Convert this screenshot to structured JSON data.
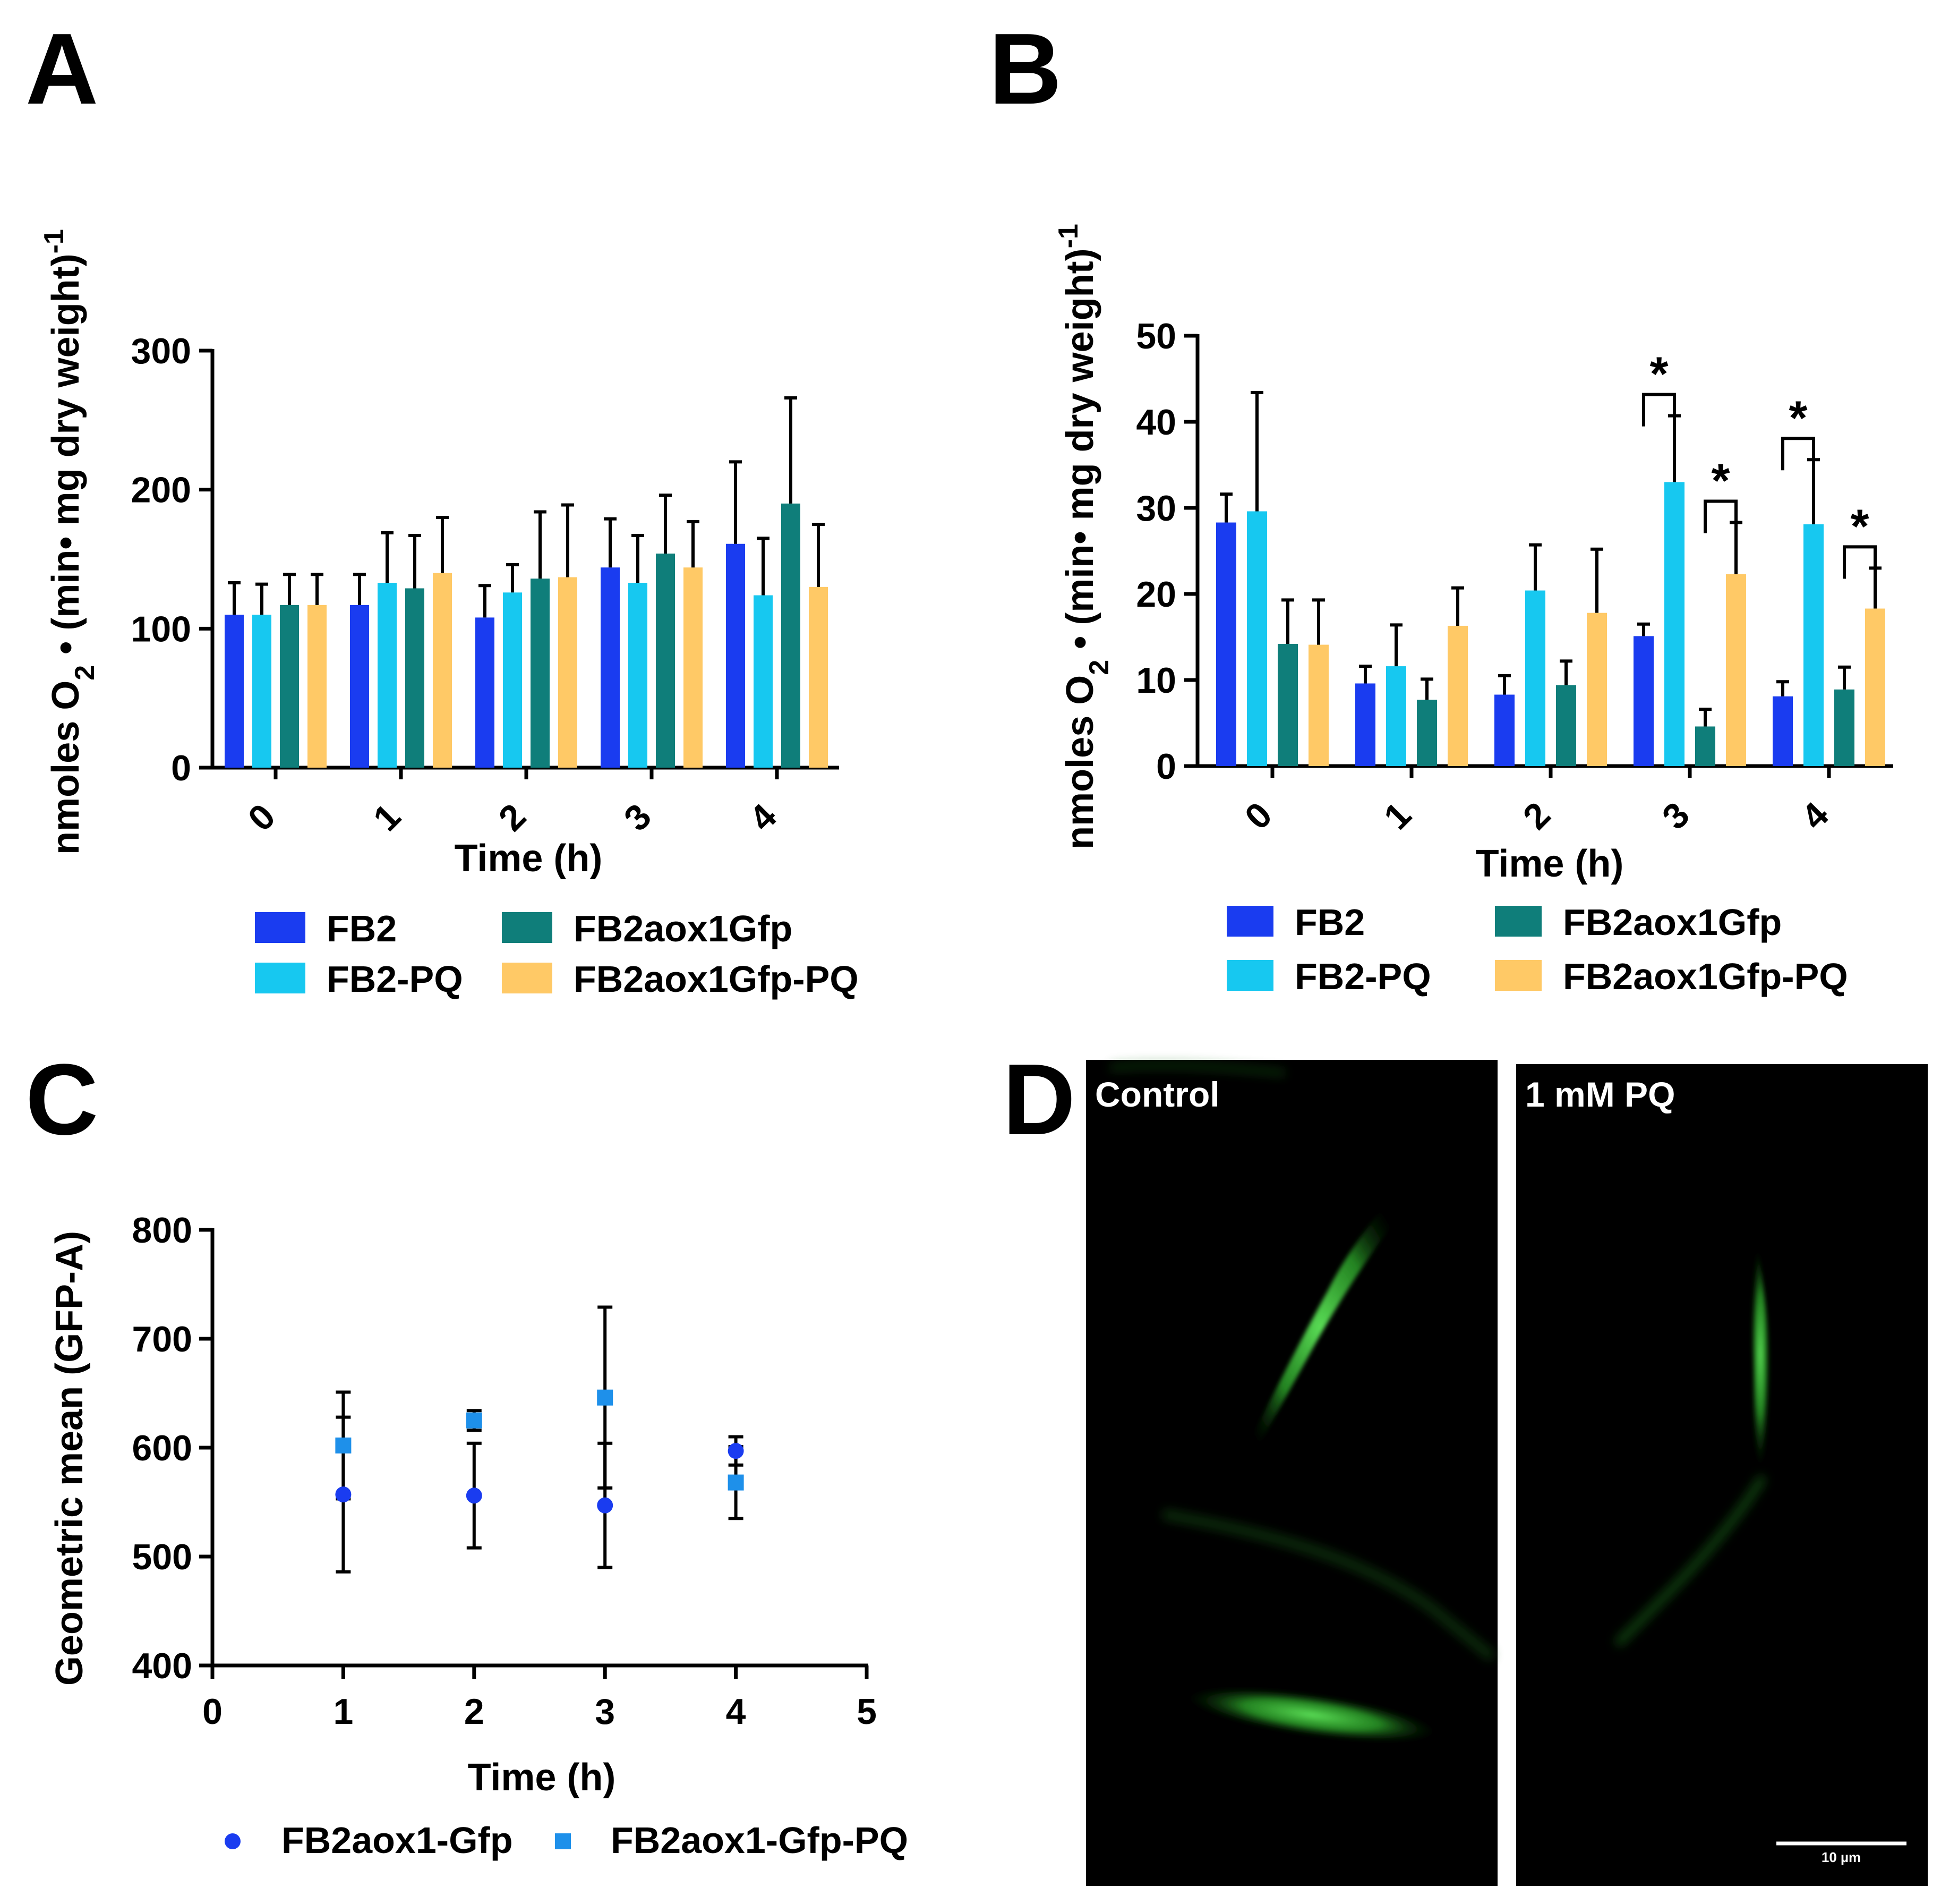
{
  "panels": {
    "A": {
      "label": "A"
    },
    "B": {
      "label": "B"
    },
    "C": {
      "label": "C"
    },
    "D": {
      "label": "D",
      "left_label": "Control",
      "right_label": "1 mM PQ",
      "scale_bar_label": "10 µm"
    }
  },
  "colors": {
    "FB2": "#1a3cf0",
    "FB2-PQ": "#17c8f0",
    "FB2aox1Gfp": "#0f7e7a",
    "FB2aox1Gfp-PQ": "#ffc966",
    "FB2aox1-Gfp": "#1a3cf0",
    "FB2aox1-Gfp-PQ": "#1e90ea"
  },
  "chart_data": [
    {
      "id": "A",
      "type": "bar",
      "title": "",
      "xlabel": "Time (h)",
      "ylabel": "nmoles O2 • (min• mg  dry weight)-1",
      "ylim": [
        0,
        300
      ],
      "yticks": [
        0,
        100,
        200,
        300
      ],
      "categories": [
        "0",
        "1",
        "2",
        "3",
        "4"
      ],
      "series": [
        {
          "name": "FB2",
          "values": [
            110,
            117,
            108,
            144,
            161
          ],
          "errors": [
            23,
            22,
            23,
            35,
            59
          ]
        },
        {
          "name": "FB2-PQ",
          "values": [
            110,
            133,
            126,
            133,
            124
          ],
          "errors": [
            22,
            36,
            20,
            34,
            41
          ]
        },
        {
          "name": "FB2aox1Gfp",
          "values": [
            117,
            129,
            136,
            154,
            190
          ],
          "errors": [
            22,
            38,
            48,
            42,
            76
          ]
        },
        {
          "name": "FB2aox1Gfp-PQ",
          "values": [
            117,
            140,
            137,
            144,
            130
          ],
          "errors": [
            22,
            40,
            52,
            33,
            45
          ]
        }
      ],
      "legend": [
        "FB2",
        "FB2-PQ",
        "FB2aox1Gfp",
        "FB2aox1Gfp-PQ"
      ]
    },
    {
      "id": "B",
      "type": "bar",
      "title": "",
      "xlabel": "Time (h)",
      "ylabel": "nmoles O2 • (min• mg  dry weight)-1",
      "ylim": [
        0,
        50
      ],
      "yticks": [
        0,
        10,
        20,
        30,
        40,
        50
      ],
      "categories": [
        "0",
        "1",
        "2",
        "3",
        "4"
      ],
      "series": [
        {
          "name": "FB2",
          "values": [
            28.3,
            9.6,
            8.3,
            15.1,
            8.1
          ],
          "errors": [
            3.3,
            2.0,
            2.2,
            1.4,
            1.7
          ]
        },
        {
          "name": "FB2-PQ",
          "values": [
            29.6,
            11.6,
            20.4,
            33.0,
            28.1
          ],
          "errors": [
            13.8,
            4.8,
            5.3,
            7.7,
            7.5
          ]
        },
        {
          "name": "FB2aox1Gfp",
          "values": [
            14.2,
            7.7,
            9.4,
            4.6,
            8.9
          ],
          "errors": [
            5.1,
            2.4,
            2.8,
            2.0,
            2.6
          ]
        },
        {
          "name": "FB2aox1Gfp-PQ",
          "values": [
            14.1,
            16.3,
            17.8,
            22.3,
            18.3
          ],
          "errors": [
            5.2,
            4.4,
            7.4,
            6.0,
            4.7
          ]
        }
      ],
      "annotations": [
        {
          "text": "*",
          "category": "3",
          "between": [
            "FB2",
            "FB2-PQ"
          ]
        },
        {
          "text": "*",
          "category": "3",
          "between": [
            "FB2aox1Gfp",
            "FB2aox1Gfp-PQ"
          ]
        },
        {
          "text": "*",
          "category": "4",
          "between": [
            "FB2",
            "FB2-PQ"
          ]
        },
        {
          "text": "*",
          "category": "4",
          "between": [
            "FB2aox1Gfp",
            "FB2aox1Gfp-PQ"
          ]
        }
      ],
      "legend": [
        "FB2",
        "FB2-PQ",
        "FB2aox1Gfp",
        "FB2aox1Gfp-PQ"
      ]
    },
    {
      "id": "C",
      "type": "scatter",
      "title": "",
      "xlabel": "Time (h)",
      "ylabel": "Geometric mean (GFP-A)",
      "xlim": [
        0,
        5
      ],
      "ylim": [
        400,
        800
      ],
      "xticks": [
        0,
        1,
        2,
        3,
        4,
        5
      ],
      "yticks": [
        400,
        500,
        600,
        700,
        800
      ],
      "series": [
        {
          "name": "FB2aox1-Gfp",
          "marker": "circle",
          "x": [
            1,
            2,
            3,
            4
          ],
          "y": [
            557,
            556,
            547,
            597
          ],
          "errors": [
            71,
            48,
            57,
            13
          ]
        },
        {
          "name": "FB2aox1-Gfp-PQ",
          "marker": "square",
          "x": [
            1,
            2,
            3,
            4
          ],
          "y": [
            602,
            625,
            646,
            568
          ],
          "errors": [
            49,
            9,
            83,
            33
          ]
        }
      ],
      "legend": [
        "FB2aox1-Gfp",
        "FB2aox1-Gfp-PQ"
      ]
    }
  ]
}
